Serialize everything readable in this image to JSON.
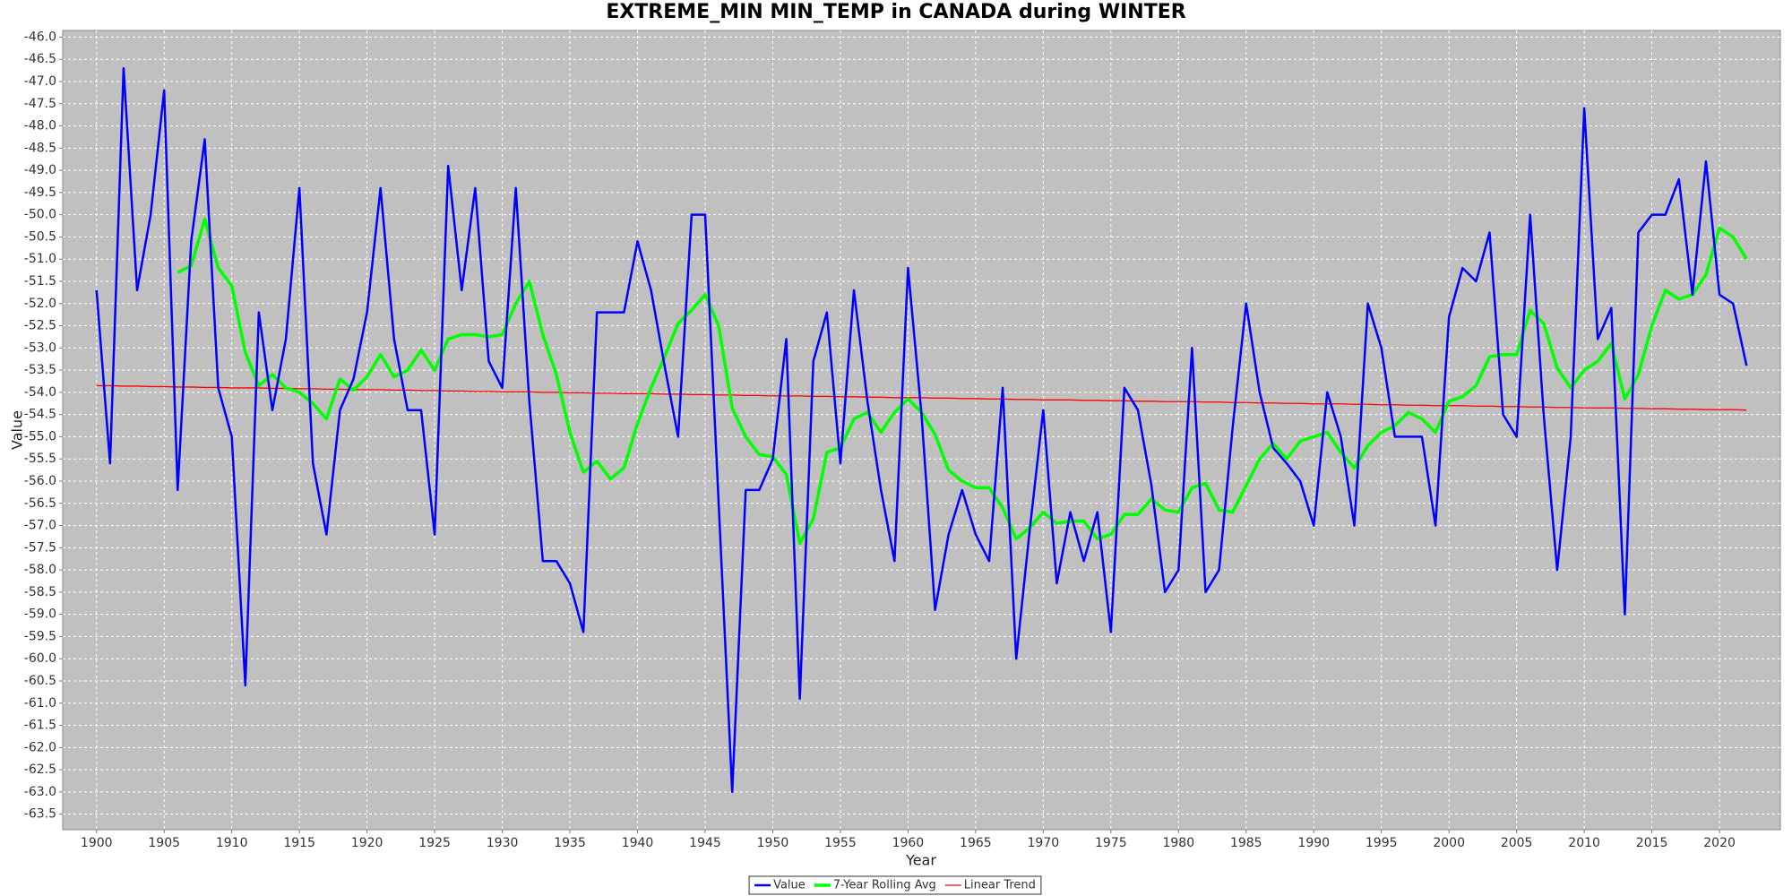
{
  "chart_data": {
    "type": "line",
    "title": "EXTREME_MIN MIN_TEMP in CANADA during WINTER",
    "x_label": "Year",
    "y_label": "Value",
    "x": [
      1900,
      1901,
      1902,
      1903,
      1904,
      1905,
      1906,
      1907,
      1908,
      1909,
      1910,
      1911,
      1912,
      1913,
      1914,
      1915,
      1916,
      1917,
      1918,
      1919,
      1920,
      1921,
      1922,
      1923,
      1924,
      1925,
      1926,
      1927,
      1928,
      1929,
      1930,
      1931,
      1932,
      1933,
      1934,
      1935,
      1936,
      1937,
      1938,
      1939,
      1940,
      1941,
      1942,
      1943,
      1944,
      1945,
      1946,
      1947,
      1948,
      1949,
      1950,
      1951,
      1952,
      1953,
      1954,
      1955,
      1956,
      1957,
      1958,
      1959,
      1960,
      1961,
      1962,
      1963,
      1964,
      1965,
      1966,
      1967,
      1968,
      1969,
      1970,
      1971,
      1972,
      1973,
      1974,
      1975,
      1976,
      1977,
      1978,
      1979,
      1980,
      1981,
      1982,
      1983,
      1984,
      1985,
      1986,
      1987,
      1988,
      1989,
      1990,
      1991,
      1992,
      1993,
      1994,
      1995,
      1996,
      1997,
      1998,
      1999,
      2000,
      2001,
      2002,
      2003,
      2004,
      2005,
      2006,
      2007,
      2008,
      2009,
      2010,
      2011,
      2012,
      2013,
      2014,
      2015,
      2016,
      2017,
      2018,
      2019,
      2020,
      2021,
      2022
    ],
    "series": [
      {
        "name": "Value",
        "color": "#0000ff",
        "width": 2.5,
        "values": [
          -51.7,
          -55.6,
          -46.7,
          -51.7,
          -50.0,
          -47.2,
          -56.2,
          -50.6,
          -48.3,
          -53.9,
          -55.0,
          -60.6,
          -52.2,
          -54.4,
          -52.8,
          -49.4,
          -55.6,
          -57.2,
          -54.4,
          -53.7,
          -52.2,
          -49.4,
          -52.8,
          -54.4,
          -54.4,
          -57.2,
          -48.9,
          -51.7,
          -49.4,
          -53.3,
          -53.9,
          -49.4,
          -54.2,
          -57.8,
          -57.8,
          -58.3,
          -59.4,
          -52.2,
          -52.2,
          -52.2,
          -50.6,
          -51.7,
          -53.4,
          -55.0,
          -50.0,
          -50.0,
          -56.5,
          -63.0,
          -56.2,
          -56.2,
          -55.5,
          -52.8,
          -60.9,
          -53.3,
          -52.2,
          -55.6,
          -51.7,
          -54.2,
          -56.2,
          -57.8,
          -51.2,
          -54.5,
          -58.9,
          -57.2,
          -56.2,
          -57.2,
          -57.8,
          -53.9,
          -60.0,
          -57.1,
          -54.4,
          -58.3,
          -56.7,
          -57.8,
          -56.7,
          -59.4,
          -53.9,
          -54.4,
          -56.1,
          -58.5,
          -58.0,
          -53.0,
          -58.5,
          -58.0,
          -54.8,
          -52.0,
          -54.0,
          -55.25,
          -55.6,
          -56.0,
          -57.0,
          -54.0,
          -55.0,
          -57.0,
          -52.0,
          -53.0,
          -55.0,
          -55.0,
          -55.0,
          -57.0,
          -52.3,
          -51.2,
          -51.5,
          -50.4,
          -54.5,
          -55.0,
          -50.0,
          -54.5,
          -58.0,
          -55.0,
          -47.6,
          -52.8,
          -52.1,
          -59.0,
          -50.4,
          -50.0,
          -50.0,
          -49.2,
          -51.8,
          -48.8,
          -51.8,
          -52.0,
          -53.4
        ]
      },
      {
        "name": "7-Year Rolling Avg",
        "color": "#00ff00",
        "width": 3.5,
        "values": [
          null,
          null,
          null,
          null,
          null,
          null,
          -51.3,
          -51.15,
          -50.1,
          -51.2,
          -51.6,
          -53.1,
          -53.85,
          -53.6,
          -53.9,
          -54.0,
          -54.25,
          -54.6,
          -53.7,
          -53.95,
          -53.65,
          -53.15,
          -53.65,
          -53.5,
          -53.05,
          -53.5,
          -52.8,
          -52.7,
          -52.7,
          -52.75,
          -52.7,
          -52.0,
          -51.5,
          -52.7,
          -53.6,
          -54.9,
          -55.8,
          -55.55,
          -55.95,
          -55.7,
          -54.7,
          -53.9,
          -53.2,
          -52.45,
          -52.15,
          -51.8,
          -52.5,
          -54.35,
          -55.0,
          -55.4,
          -55.45,
          -55.85,
          -57.4,
          -56.85,
          -55.35,
          -55.25,
          -54.6,
          -54.45,
          -54.9,
          -54.45,
          -54.15,
          -54.45,
          -54.95,
          -55.75,
          -56.0,
          -56.15,
          -56.15,
          -56.6,
          -57.3,
          -57.05,
          -56.7,
          -56.95,
          -56.9,
          -56.9,
          -57.3,
          -57.2,
          -56.75,
          -56.75,
          -56.4,
          -56.65,
          -56.7,
          -56.15,
          -56.05,
          -56.65,
          -56.7,
          -56.1,
          -55.5,
          -55.15,
          -55.5,
          -55.1,
          -55.0,
          -54.9,
          -55.35,
          -55.7,
          -55.2,
          -54.9,
          -54.75,
          -54.45,
          -54.6,
          -54.9,
          -54.2,
          -54.1,
          -53.85,
          -53.2,
          -53.15,
          -53.15,
          -52.15,
          -52.45,
          -53.45,
          -53.9,
          -53.5,
          -53.3,
          -52.9,
          -54.15,
          -53.6,
          -52.5,
          -51.7,
          -51.9,
          -51.8,
          -51.35,
          -50.3,
          -50.5,
          -51.0
        ]
      },
      {
        "name": "Linear Trend",
        "color": "#ff0000",
        "width": 1.3,
        "values": [
          -53.85,
          -53.85,
          -53.86,
          -53.86,
          -53.87,
          -53.87,
          -53.88,
          -53.88,
          -53.89,
          -53.89,
          -53.9,
          -53.9,
          -53.9,
          -53.91,
          -53.91,
          -53.92,
          -53.92,
          -53.93,
          -53.93,
          -53.94,
          -53.94,
          -53.94,
          -53.95,
          -53.95,
          -53.96,
          -53.96,
          -53.97,
          -53.97,
          -53.98,
          -53.98,
          -53.99,
          -53.99,
          -53.99,
          -54.0,
          -54.0,
          -54.01,
          -54.01,
          -54.02,
          -54.02,
          -54.03,
          -54.03,
          -54.03,
          -54.04,
          -54.04,
          -54.05,
          -54.05,
          -54.06,
          -54.06,
          -54.07,
          -54.07,
          -54.08,
          -54.08,
          -54.08,
          -54.09,
          -54.09,
          -54.1,
          -54.1,
          -54.11,
          -54.11,
          -54.12,
          -54.12,
          -54.12,
          -54.13,
          -54.13,
          -54.14,
          -54.14,
          -54.15,
          -54.15,
          -54.16,
          -54.16,
          -54.17,
          -54.17,
          -54.17,
          -54.18,
          -54.18,
          -54.19,
          -54.19,
          -54.2,
          -54.2,
          -54.21,
          -54.21,
          -54.21,
          -54.22,
          -54.22,
          -54.23,
          -54.23,
          -54.24,
          -54.24,
          -54.25,
          -54.25,
          -54.26,
          -54.26,
          -54.26,
          -54.27,
          -54.27,
          -54.28,
          -54.28,
          -54.29,
          -54.29,
          -54.3,
          -54.3,
          -54.3,
          -54.31,
          -54.31,
          -54.32,
          -54.32,
          -54.33,
          -54.33,
          -54.34,
          -54.34,
          -54.35,
          -54.35,
          -54.35,
          -54.36,
          -54.36,
          -54.37,
          -54.37,
          -54.38,
          -54.38,
          -54.39,
          -54.39,
          -54.39,
          -54.4
        ]
      }
    ],
    "xlim": [
      1897.5,
      2024.5
    ],
    "ylim": [
      -63.85,
      -45.85
    ],
    "xticks": [
      1900,
      1905,
      1910,
      1915,
      1920,
      1925,
      1930,
      1935,
      1940,
      1945,
      1950,
      1955,
      1960,
      1965,
      1970,
      1975,
      1980,
      1985,
      1990,
      1995,
      2000,
      2005,
      2010,
      2015,
      2020
    ],
    "yticks": [
      {
        "value": -46,
        "label": "-46.0"
      },
      -46.5,
      {
        "value": -47,
        "label": "-47.0"
      },
      -47.5,
      {
        "value": -48,
        "label": "-48.0"
      },
      -48.5,
      {
        "value": -49,
        "label": "-49.0"
      },
      -49.5,
      {
        "value": -50,
        "label": "-50.0"
      },
      -50.5,
      {
        "value": -51,
        "label": "-51.0"
      },
      -51.5,
      {
        "value": -52,
        "label": "-52.0"
      },
      -52.5,
      {
        "value": -53,
        "label": "-53.0"
      },
      -53.5,
      {
        "value": -54,
        "label": "-54.0"
      },
      -54.5,
      {
        "value": -55,
        "label": "-55.0"
      },
      -55.5,
      {
        "value": -56,
        "label": "-56.0"
      },
      -56.5,
      {
        "value": -57,
        "label": "-57.0"
      },
      -57.5,
      {
        "value": -58,
        "label": "-58.0"
      },
      -58.5,
      {
        "value": -59,
        "label": "-59.0"
      },
      -59.5,
      {
        "value": -60,
        "label": "-60.0"
      },
      -60.5,
      {
        "value": -61,
        "label": "-61.0"
      },
      -61.5,
      {
        "value": -62,
        "label": "-62.0"
      },
      -62.5,
      {
        "value": -63,
        "label": "-63.0"
      },
      -63.5
    ],
    "grid": true,
    "plot_background": "#c0c0c0",
    "legend": "bottom"
  }
}
